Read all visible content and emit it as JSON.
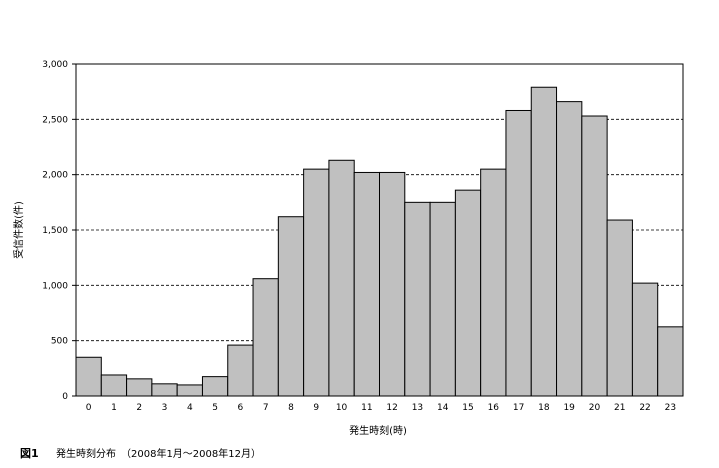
{
  "chart_data": {
    "type": "bar",
    "categories": [
      "0",
      "1",
      "2",
      "3",
      "4",
      "5",
      "6",
      "7",
      "8",
      "9",
      "10",
      "11",
      "12",
      "13",
      "14",
      "15",
      "16",
      "17",
      "18",
      "19",
      "20",
      "21",
      "22",
      "23"
    ],
    "values": [
      350,
      190,
      155,
      110,
      100,
      175,
      460,
      1060,
      1620,
      2050,
      2130,
      2020,
      2020,
      1750,
      1750,
      1860,
      2050,
      2580,
      2790,
      2660,
      2530,
      1590,
      1020,
      625
    ],
    "xlabel": "発生時刻(時)",
    "ylabel": "受信件数(件)",
    "ylim": [
      0,
      3000
    ],
    "yticks": [
      0,
      500,
      1000,
      1500,
      2000,
      2500,
      3000
    ],
    "ytick_labels": [
      "0",
      "500",
      "1,000",
      "1,500",
      "2,000",
      "2,500",
      "3,000"
    ],
    "grid": "horizontal-dashed",
    "bar_color": "#c0c0c0",
    "bar_edge_color": "#000000"
  },
  "caption": {
    "label": "図1",
    "text": "発生時刻分布　（2008年1月～2008年12月）"
  }
}
